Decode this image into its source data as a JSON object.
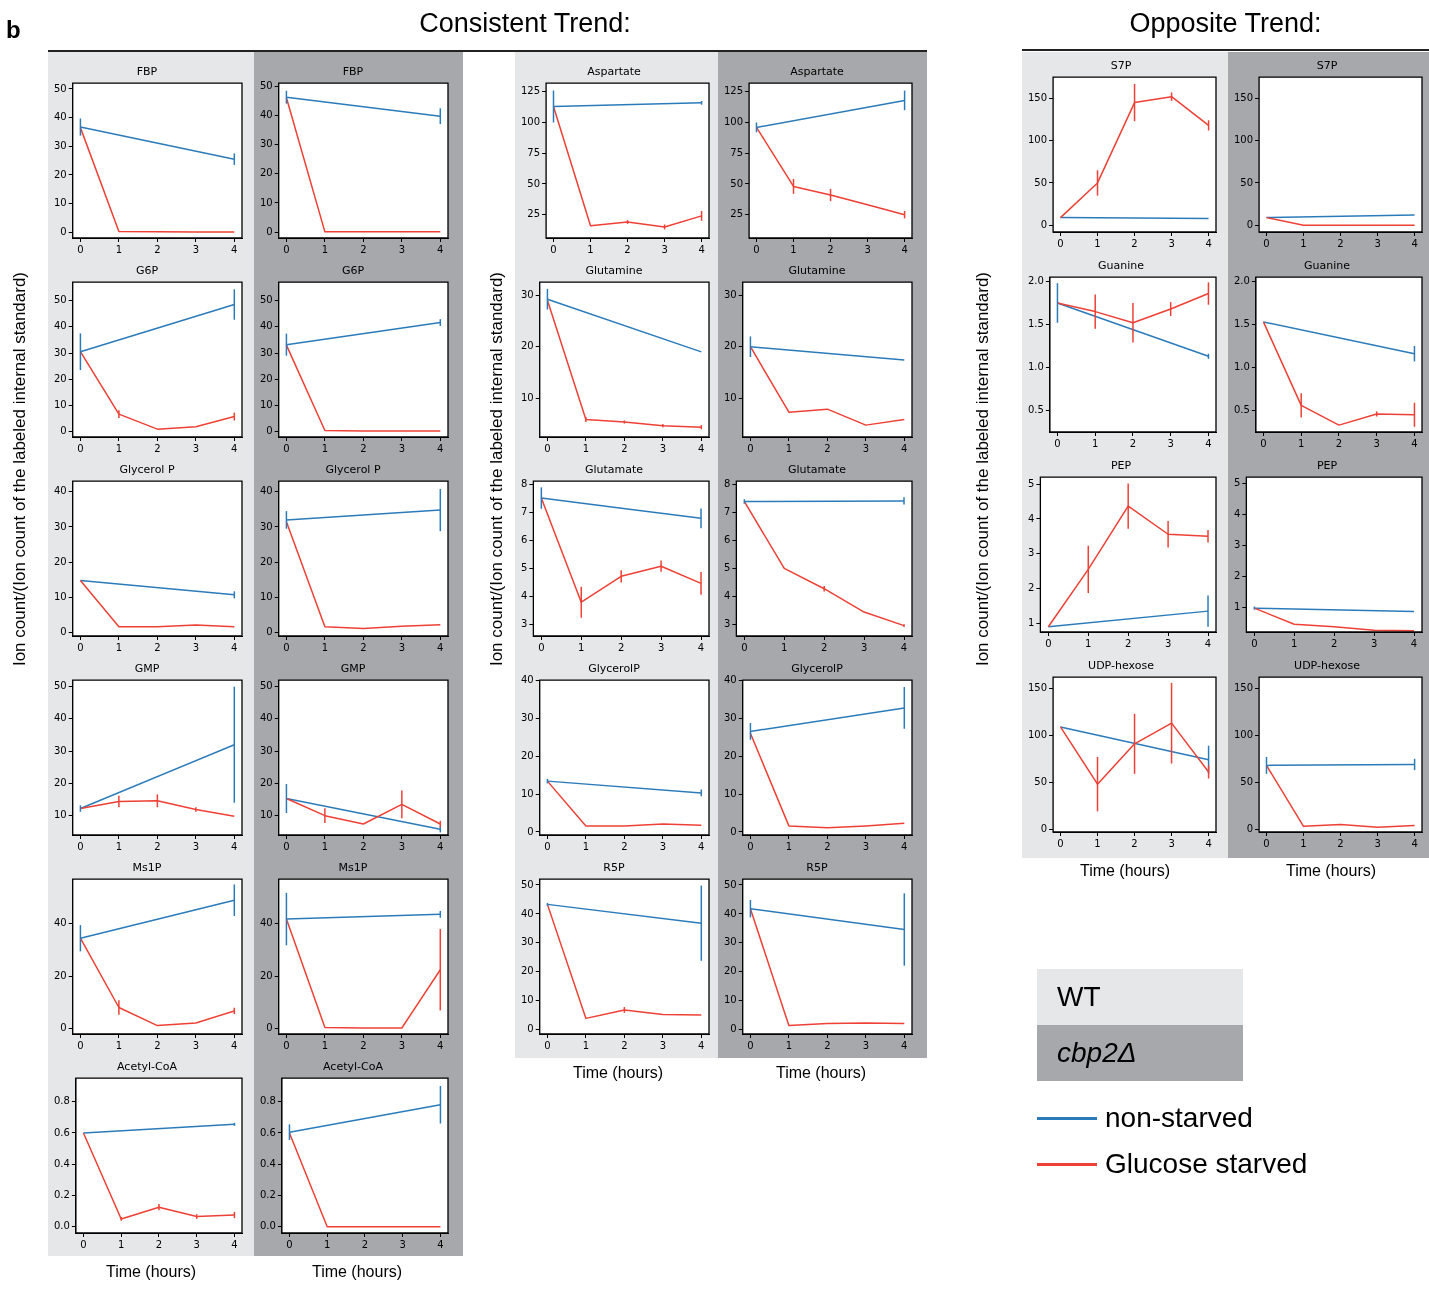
{
  "chart_data": [
    {
      "type": "line",
      "title": "FBP",
      "ylabel": "Ion count/(Ion count of the labeled internal standard)",
      "legend": "bottom right",
      "x": [
        0,
        1,
        2,
        3,
        4
      ],
      "xlim": [
        -0.2,
        4.2
      ],
      "xticks": [
        0,
        1,
        2,
        3,
        4
      ],
      "ylim": [
        -2,
        52
      ],
      "yticks": [
        0,
        10,
        20,
        30,
        40,
        50
      ],
      "series": [
        {
          "name": "non-starved",
          "color": "#2b7bba",
          "values": [
            36.7,
            null,
            null,
            null,
            25.5
          ],
          "errors": [
            3,
            null,
            null,
            null,
            2
          ]
        },
        {
          "name": "Glucose starved",
          "color": "#ee4035",
          "values": [
            36.5,
            0.3,
            0.2,
            0.1,
            0.1
          ]
        }
      ]
    },
    {
      "type": "line",
      "title": "FBP",
      "x": [
        0,
        1,
        2,
        3,
        4
      ],
      "xlim": [
        -0.2,
        4.2
      ],
      "xticks": [
        0,
        1,
        2,
        3,
        4
      ],
      "ylim": [
        -2,
        51
      ],
      "yticks": [
        0,
        10,
        20,
        30,
        40,
        50
      ],
      "series": [
        {
          "color": "#2b7bba",
          "values": [
            46.2,
            null,
            null,
            null,
            39.7
          ],
          "errors": [
            2.2,
            null,
            null,
            null,
            2.7
          ]
        },
        {
          "color": "#ee4035",
          "values": [
            46,
            0.1,
            0.1,
            0.1,
            0.1
          ]
        }
      ]
    },
    {
      "type": "line",
      "title": "G6P",
      "x": [
        0,
        1,
        2,
        3,
        4
      ],
      "xlim": [
        -0.2,
        4.2
      ],
      "xticks": [
        0,
        1,
        2,
        3,
        4
      ],
      "ylim": [
        -2,
        57
      ],
      "yticks": [
        0,
        10,
        20,
        30,
        40,
        50
      ],
      "series": [
        {
          "color": "#2b7bba",
          "values": [
            30.5,
            null,
            null,
            null,
            48.5
          ],
          "errors": [
            7,
            null,
            null,
            null,
            5.8
          ]
        },
        {
          "color": "#ee4035",
          "values": [
            30.5,
            6.7,
            1,
            1.9,
            5.8
          ],
          "errors": [
            null,
            1.5,
            null,
            null,
            1.5
          ]
        }
      ]
    },
    {
      "type": "line",
      "title": "G6P",
      "x": [
        0,
        1,
        2,
        3,
        4
      ],
      "xlim": [
        -0.2,
        4.2
      ],
      "xticks": [
        0,
        1,
        2,
        3,
        4
      ],
      "ylim": [
        -2,
        57
      ],
      "yticks": [
        0,
        10,
        20,
        30,
        40,
        50
      ],
      "series": [
        {
          "color": "#2b7bba",
          "values": [
            33.2,
            null,
            null,
            null,
            41.6
          ],
          "errors": [
            4.2,
            null,
            null,
            null,
            1.3
          ]
        },
        {
          "color": "#ee4035",
          "values": [
            33,
            0.5,
            0.3,
            0.3,
            0.3
          ]
        }
      ]
    },
    {
      "type": "line",
      "title": "Glycerol P",
      "x": [
        0,
        1,
        2,
        3,
        4
      ],
      "xlim": [
        -0.2,
        4.2
      ],
      "xticks": [
        0,
        1,
        2,
        3,
        4
      ],
      "ylim": [
        -1,
        43
      ],
      "yticks": [
        0,
        10,
        20,
        30,
        40
      ],
      "series": [
        {
          "color": "#2b7bba",
          "values": [
            14.8,
            null,
            null,
            null,
            10.7
          ],
          "errors": [
            null,
            null,
            null,
            null,
            1
          ]
        },
        {
          "color": "#ee4035",
          "values": [
            14.8,
            1.6,
            1.6,
            2.1,
            1.6
          ]
        }
      ]
    },
    {
      "type": "line",
      "title": "Glycerol P",
      "x": [
        0,
        1,
        2,
        3,
        4
      ],
      "xlim": [
        -0.2,
        4.2
      ],
      "xticks": [
        0,
        1,
        2,
        3,
        4
      ],
      "ylim": [
        -1,
        43
      ],
      "yticks": [
        0,
        10,
        20,
        30,
        40
      ],
      "series": [
        {
          "color": "#2b7bba",
          "values": [
            32,
            null,
            null,
            null,
            34.8
          ],
          "errors": [
            2.5,
            null,
            null,
            null,
            6
          ]
        },
        {
          "color": "#ee4035",
          "values": [
            31.5,
            1.6,
            1.1,
            1.8,
            2.2
          ]
        }
      ]
    },
    {
      "type": "line",
      "title": "GMP",
      "x": [
        0,
        1,
        2,
        3,
        4
      ],
      "xlim": [
        -0.2,
        4.2
      ],
      "xticks": [
        0,
        1,
        2,
        3,
        4
      ],
      "ylim": [
        4,
        52
      ],
      "yticks": [
        10,
        20,
        30,
        40,
        50
      ],
      "series": [
        {
          "color": "#2b7bba",
          "values": [
            12.2,
            null,
            null,
            null,
            32
          ],
          "errors": [
            1,
            null,
            null,
            null,
            18
          ]
        },
        {
          "color": "#ee4035",
          "values": [
            12.2,
            14.4,
            14.6,
            11.9,
            9.8
          ],
          "errors": [
            null,
            1.8,
            2,
            0.7,
            null
          ]
        }
      ]
    },
    {
      "type": "line",
      "title": "GMP",
      "x": [
        0,
        1,
        2,
        3,
        4
      ],
      "xlim": [
        -0.2,
        4.2
      ],
      "xticks": [
        0,
        1,
        2,
        3,
        4
      ],
      "ylim": [
        4,
        52
      ],
      "yticks": [
        10,
        20,
        30,
        40,
        50
      ],
      "series": [
        {
          "color": "#2b7bba",
          "values": [
            15.3,
            null,
            null,
            null,
            5.8
          ],
          "errors": [
            4.5,
            null,
            null,
            null,
            1
          ]
        },
        {
          "color": "#ee4035",
          "values": [
            15.3,
            10,
            7.4,
            13.5,
            7.4
          ],
          "errors": [
            null,
            2.3,
            null,
            4.3,
            1
          ]
        }
      ]
    },
    {
      "type": "line",
      "title": "Ms1P",
      "x": [
        0,
        1,
        2,
        3,
        4
      ],
      "xlim": [
        -0.2,
        4.2
      ],
      "xticks": [
        0,
        1,
        2,
        3,
        4
      ],
      "ylim": [
        -2,
        57
      ],
      "yticks": [
        0,
        20,
        40
      ],
      "series": [
        {
          "color": "#2b7bba",
          "values": [
            34.5,
            null,
            null,
            null,
            49
          ],
          "errors": [
            5,
            null,
            null,
            null,
            6
          ]
        },
        {
          "color": "#ee4035",
          "values": [
            34.5,
            8.1,
            1.2,
            2.2,
            6.8
          ],
          "errors": [
            null,
            2.8,
            null,
            null,
            1.2
          ]
        }
      ]
    },
    {
      "type": "line",
      "title": "Ms1P",
      "x": [
        0,
        1,
        2,
        3,
        4
      ],
      "xlim": [
        -0.2,
        4.2
      ],
      "xticks": [
        0,
        1,
        2,
        3,
        4
      ],
      "ylim": [
        -2,
        57
      ],
      "yticks": [
        0,
        20,
        40
      ],
      "series": [
        {
          "color": "#2b7bba",
          "values": [
            41.8,
            null,
            null,
            null,
            43.6
          ],
          "errors": [
            10,
            null,
            null,
            null,
            1.3
          ]
        },
        {
          "color": "#ee4035",
          "values": [
            41.8,
            0.5,
            0.3,
            0.3,
            22.5
          ],
          "errors": [
            null,
            null,
            null,
            null,
            15.5
          ]
        }
      ]
    },
    {
      "type": "line",
      "title": "Acetyl-CoA",
      "xlabel": "Time (hours)",
      "x": [
        0,
        1,
        2,
        3,
        4
      ],
      "xlim": [
        -0.2,
        4.2
      ],
      "xticks": [
        0,
        1,
        2,
        3,
        4
      ],
      "ylim": [
        -0.04,
        0.95
      ],
      "yticks": [
        {
          "value": 0,
          "label": "0.0"
        },
        0.2,
        0.4,
        0.6,
        0.8
      ],
      "series": [
        {
          "color": "#2b7bba",
          "values": [
            0.6,
            null,
            null,
            null,
            0.655
          ],
          "errors": [
            null,
            null,
            null,
            null,
            0.01
          ]
        },
        {
          "color": "#ee4035",
          "values": [
            0.6,
            0.05,
            0.125,
            0.065,
            0.075
          ],
          "errors": [
            null,
            0.012,
            0.02,
            0.015,
            0.02
          ]
        }
      ]
    },
    {
      "type": "line",
      "title": "Acetyl-CoA",
      "xlabel": "Time (hours)",
      "x": [
        0,
        1,
        2,
        3,
        4
      ],
      "xlim": [
        -0.2,
        4.2
      ],
      "xticks": [
        0,
        1,
        2,
        3,
        4
      ],
      "ylim": [
        -0.04,
        0.95
      ],
      "yticks": [
        {
          "value": 0,
          "label": "0.0"
        },
        0.2,
        0.4,
        0.6,
        0.8
      ],
      "series": [
        {
          "color": "#2b7bba",
          "values": [
            0.605,
            null,
            null,
            null,
            0.78
          ],
          "errors": [
            0.05,
            null,
            null,
            null,
            0.12
          ]
        },
        {
          "color": "#ee4035",
          "values": [
            0.6,
            0,
            0,
            0,
            0
          ]
        }
      ]
    },
    {
      "type": "line",
      "title": "Aspartate",
      "ylabel": "Ion count/(Ion count of the labeled internal standard)",
      "x": [
        0,
        1,
        2,
        3,
        4
      ],
      "xlim": [
        -0.2,
        4.2
      ],
      "xticks": [
        0,
        1,
        2,
        3,
        4
      ],
      "ylim": [
        6,
        132
      ],
      "yticks": [
        25,
        50,
        75,
        100,
        125
      ],
      "series": [
        {
          "color": "#2b7bba",
          "values": [
            113,
            null,
            null,
            null,
            116
          ],
          "errors": [
            13,
            null,
            null,
            null,
            1.5
          ]
        },
        {
          "color": "#ee4035",
          "values": [
            113,
            16,
            19,
            15,
            24
          ],
          "errors": [
            null,
            null,
            1.5,
            2,
            4
          ]
        }
      ]
    },
    {
      "type": "line",
      "title": "Aspartate",
      "x": [
        0,
        1,
        2,
        3,
        4
      ],
      "xlim": [
        -0.2,
        4.2
      ],
      "xticks": [
        0,
        1,
        2,
        3,
        4
      ],
      "ylim": [
        6,
        132
      ],
      "yticks": [
        25,
        50,
        75,
        100,
        125
      ],
      "series": [
        {
          "color": "#2b7bba",
          "values": [
            96,
            null,
            null,
            null,
            118
          ],
          "errors": [
            4,
            null,
            null,
            null,
            8
          ]
        },
        {
          "color": "#ee4035",
          "values": [
            96,
            48,
            41,
            33,
            25
          ],
          "errors": [
            null,
            6,
            5,
            null,
            3
          ]
        }
      ]
    },
    {
      "type": "line",
      "title": "Glutamine",
      "x": [
        0,
        1,
        2,
        3,
        4
      ],
      "xlim": [
        -0.2,
        4.2
      ],
      "xticks": [
        0,
        1,
        2,
        3,
        4
      ],
      "ylim": [
        2.5,
        32.5
      ],
      "yticks": [
        10,
        20,
        30
      ],
      "series": [
        {
          "color": "#2b7bba",
          "values": [
            29.2,
            null,
            null,
            null,
            19
          ],
          "errors": [
            2,
            null,
            null,
            null,
            null
          ]
        },
        {
          "color": "#ee4035",
          "values": [
            29,
            5.9,
            5.4,
            4.7,
            4.4
          ],
          "errors": [
            null,
            0.5,
            0.3,
            0.3,
            0.4
          ]
        }
      ]
    },
    {
      "type": "line",
      "title": "Glutamine",
      "x": [
        0,
        1,
        2,
        3,
        4
      ],
      "xlim": [
        -0.2,
        4.2
      ],
      "xticks": [
        0,
        1,
        2,
        3,
        4
      ],
      "ylim": [
        2.5,
        32.5
      ],
      "yticks": [
        10,
        20,
        30
      ],
      "series": [
        {
          "color": "#2b7bba",
          "values": [
            20,
            null,
            null,
            null,
            17.4
          ],
          "errors": [
            2,
            null,
            null,
            null,
            null
          ]
        },
        {
          "color": "#ee4035",
          "values": [
            20,
            7.3,
            7.9,
            4.8,
            5.9
          ]
        }
      ]
    },
    {
      "type": "line",
      "title": "Glutamate",
      "x": [
        0,
        1,
        2,
        3,
        4
      ],
      "xlim": [
        -0.2,
        4.2
      ],
      "xticks": [
        0,
        1,
        2,
        3,
        4
      ],
      "ylim": [
        2.6,
        8.1
      ],
      "yticks": [
        3,
        4,
        5,
        6,
        7,
        8
      ],
      "series": [
        {
          "color": "#2b7bba",
          "values": [
            7.5,
            null,
            null,
            null,
            6.78
          ],
          "errors": [
            0.38,
            null,
            null,
            null,
            0.35
          ]
        },
        {
          "color": "#ee4035",
          "values": [
            7.5,
            3.8,
            4.72,
            5.08,
            4.47
          ],
          "errors": [
            null,
            0.55,
            0.22,
            0.2,
            0.4
          ]
        }
      ]
    },
    {
      "type": "line",
      "title": "Glutamate",
      "x": [
        0,
        1,
        2,
        3,
        4
      ],
      "xlim": [
        -0.2,
        4.2
      ],
      "xticks": [
        0,
        1,
        2,
        3,
        4
      ],
      "ylim": [
        2.6,
        8.1
      ],
      "yticks": [
        3,
        4,
        5,
        6,
        7,
        8
      ],
      "series": [
        {
          "color": "#2b7bba",
          "values": [
            7.38,
            null,
            null,
            null,
            7.4
          ],
          "errors": [
            0.08,
            null,
            null,
            null,
            0.13
          ]
        },
        {
          "color": "#ee4035",
          "values": [
            7.38,
            5,
            4.28,
            3.45,
            2.97
          ],
          "errors": [
            null,
            null,
            0.1,
            null,
            0.05
          ]
        }
      ]
    },
    {
      "type": "line",
      "title": "GlycerolP",
      "x": [
        0,
        1,
        2,
        3,
        4
      ],
      "xlim": [
        -0.2,
        4.2
      ],
      "xticks": [
        0,
        1,
        2,
        3,
        4
      ],
      "ylim": [
        -0.8,
        40
      ],
      "yticks": [
        0,
        10,
        20,
        30,
        40
      ],
      "series": [
        {
          "color": "#2b7bba",
          "values": [
            13.4,
            null,
            null,
            null,
            10.3
          ],
          "errors": [
            0.6,
            null,
            null,
            null,
            0.9
          ]
        },
        {
          "color": "#ee4035",
          "values": [
            13.4,
            1.6,
            1.6,
            2.1,
            1.8
          ]
        }
      ]
    },
    {
      "type": "line",
      "title": "GlycerolP",
      "x": [
        0,
        1,
        2,
        3,
        4
      ],
      "xlim": [
        -0.2,
        4.2
      ],
      "xticks": [
        0,
        1,
        2,
        3,
        4
      ],
      "ylim": [
        -0.8,
        40
      ],
      "yticks": [
        0,
        10,
        20,
        30,
        40
      ],
      "series": [
        {
          "color": "#2b7bba",
          "values": [
            26.5,
            null,
            null,
            null,
            32.7
          ],
          "errors": [
            2.2,
            null,
            null,
            null,
            5.5
          ]
        },
        {
          "color": "#ee4035",
          "values": [
            26,
            1.6,
            1.1,
            1.6,
            2.3
          ]
        }
      ]
    },
    {
      "type": "line",
      "title": "R5P",
      "xlabel": "Time (hours)",
      "x": [
        0,
        1,
        2,
        3,
        4
      ],
      "xlim": [
        -0.2,
        4.2
      ],
      "xticks": [
        0,
        1,
        2,
        3,
        4
      ],
      "ylim": [
        -1.5,
        52
      ],
      "yticks": [
        0,
        10,
        20,
        30,
        40,
        50
      ],
      "series": [
        {
          "color": "#2b7bba",
          "values": [
            43.3,
            null,
            null,
            null,
            36.8
          ],
          "errors": [
            0.5,
            null,
            null,
            null,
            13
          ]
        },
        {
          "color": "#ee4035",
          "values": [
            43.3,
            3.9,
            6.8,
            5.2,
            5.1
          ],
          "errors": [
            null,
            null,
            1,
            null,
            null
          ]
        }
      ]
    },
    {
      "type": "line",
      "title": "R5P",
      "xlabel": "Time (hours)",
      "x": [
        0,
        1,
        2,
        3,
        4
      ],
      "xlim": [
        -0.2,
        4.2
      ],
      "xticks": [
        0,
        1,
        2,
        3,
        4
      ],
      "ylim": [
        -1.5,
        52
      ],
      "yticks": [
        0,
        10,
        20,
        30,
        40,
        50
      ],
      "series": [
        {
          "color": "#2b7bba",
          "values": [
            41.8,
            null,
            null,
            null,
            34.6
          ],
          "errors": [
            3,
            null,
            null,
            null,
            12.5
          ]
        },
        {
          "color": "#ee4035",
          "values": [
            41.8,
            1.4,
            2.1,
            2.3,
            2.1
          ]
        }
      ]
    },
    {
      "type": "line",
      "title": "S7P",
      "ylabel": "Ion count/(Ion count of the labeled internal standard)",
      "x": [
        0,
        1,
        2,
        3,
        4
      ],
      "xlim": [
        -0.2,
        4.2
      ],
      "xticks": [
        0,
        1,
        2,
        3,
        4
      ],
      "ylim": [
        -8,
        175
      ],
      "yticks": [
        0,
        50,
        100,
        150
      ],
      "series": [
        {
          "color": "#2b7bba",
          "values": [
            9,
            null,
            null,
            null,
            8
          ]
        },
        {
          "color": "#ee4035",
          "values": [
            9,
            50,
            145,
            152,
            118
          ],
          "errors": [
            null,
            15,
            22,
            5,
            6
          ]
        }
      ]
    },
    {
      "type": "line",
      "title": "S7P",
      "x": [
        0,
        1,
        2,
        3,
        4
      ],
      "xlim": [
        -0.2,
        4.2
      ],
      "xticks": [
        0,
        1,
        2,
        3,
        4
      ],
      "ylim": [
        -8,
        175
      ],
      "yticks": [
        0,
        50,
        100,
        150
      ],
      "series": [
        {
          "color": "#2b7bba",
          "values": [
            9,
            null,
            null,
            null,
            12
          ]
        },
        {
          "color": "#ee4035",
          "values": [
            9,
            0,
            0,
            0,
            0
          ]
        }
      ]
    },
    {
      "type": "line",
      "title": "Guanine",
      "x": [
        0,
        1,
        2,
        3,
        4
      ],
      "xlim": [
        -0.2,
        4.2
      ],
      "xticks": [
        0,
        1,
        2,
        3,
        4
      ],
      "ylim": [
        0.25,
        2.05
      ],
      "yticks": [
        0.5,
        {
          "value": 1,
          "label": "1.0"
        },
        1.5,
        {
          "value": 2,
          "label": "2.0"
        }
      ],
      "series": [
        {
          "color": "#2b7bba",
          "values": [
            1.75,
            null,
            null,
            null,
            1.13
          ],
          "errors": [
            0.23,
            null,
            null,
            null,
            0.03
          ]
        },
        {
          "color": "#ee4035",
          "values": [
            1.75,
            1.65,
            1.52,
            1.68,
            1.86
          ],
          "errors": [
            null,
            0.2,
            0.23,
            0.08,
            0.13
          ]
        }
      ]
    },
    {
      "type": "line",
      "title": "Guanine",
      "x": [
        0,
        1,
        2,
        3,
        4
      ],
      "xlim": [
        -0.2,
        4.2
      ],
      "xticks": [
        0,
        1,
        2,
        3,
        4
      ],
      "ylim": [
        0.25,
        2.05
      ],
      "yticks": [
        0.5,
        {
          "value": 1,
          "label": "1.0"
        },
        1.5,
        {
          "value": 2,
          "label": "2.0"
        }
      ],
      "series": [
        {
          "color": "#2b7bba",
          "values": [
            1.53,
            null,
            null,
            null,
            1.16
          ],
          "errors": [
            null,
            null,
            null,
            null,
            0.09
          ]
        },
        {
          "color": "#ee4035",
          "values": [
            1.53,
            0.56,
            0.33,
            0.46,
            0.45
          ],
          "errors": [
            null,
            0.14,
            null,
            0.03,
            0.14
          ]
        }
      ]
    },
    {
      "type": "line",
      "title": "PEP",
      "x": [
        0,
        1,
        2,
        3,
        4
      ],
      "xlim": [
        -0.2,
        4.2
      ],
      "xticks": [
        0,
        1,
        2,
        3,
        4
      ],
      "ylim": [
        0.75,
        5.2
      ],
      "yticks": [
        1,
        2,
        3,
        4,
        5
      ],
      "series": [
        {
          "color": "#2b7bba",
          "values": [
            0.9,
            null,
            null,
            null,
            1.35
          ],
          "errors": [
            null,
            null,
            null,
            null,
            0.45
          ]
        },
        {
          "color": "#ee4035",
          "values": [
            0.9,
            2.55,
            4.37,
            3.56,
            3.5
          ],
          "errors": [
            null,
            0.68,
            0.65,
            0.38,
            0.18
          ]
        }
      ]
    },
    {
      "type": "line",
      "title": "PEP",
      "x": [
        0,
        1,
        2,
        3,
        4
      ],
      "xlim": [
        -0.2,
        4.2
      ],
      "xticks": [
        0,
        1,
        2,
        3,
        4
      ],
      "ylim": [
        0.2,
        5.2
      ],
      "yticks": [
        1,
        2,
        3,
        4,
        5
      ],
      "series": [
        {
          "color": "#2b7bba",
          "values": [
            0.97,
            null,
            null,
            null,
            0.86
          ],
          "errors": [
            0.05,
            null,
            null,
            null,
            null
          ]
        },
        {
          "color": "#ee4035",
          "values": [
            0.97,
            0.45,
            0.37,
            0.26,
            0.24
          ]
        }
      ]
    },
    {
      "type": "line",
      "title": "UDP-hexose",
      "xlabel": "Time (hours)",
      "x": [
        0,
        1,
        2,
        3,
        4
      ],
      "xlim": [
        -0.2,
        4.2
      ],
      "xticks": [
        0,
        1,
        2,
        3,
        4
      ],
      "ylim": [
        -3,
        162
      ],
      "yticks": [
        0,
        50,
        100,
        150
      ],
      "series": [
        {
          "color": "#2b7bba",
          "values": [
            109,
            null,
            null,
            null,
            74
          ],
          "errors": [
            null,
            null,
            null,
            null,
            15
          ]
        },
        {
          "color": "#ee4035",
          "values": [
            109,
            48,
            91,
            113,
            61
          ],
          "errors": [
            null,
            29,
            32,
            43,
            7
          ]
        }
      ]
    },
    {
      "type": "line",
      "title": "UDP-hexose",
      "xlabel": "Time (hours)",
      "x": [
        0,
        1,
        2,
        3,
        4
      ],
      "xlim": [
        -0.2,
        4.2
      ],
      "xticks": [
        0,
        1,
        2,
        3,
        4
      ],
      "ylim": [
        -3,
        162
      ],
      "yticks": [
        0,
        50,
        100,
        150
      ],
      "series": [
        {
          "color": "#2b7bba",
          "values": [
            68,
            null,
            null,
            null,
            69
          ],
          "errors": [
            9,
            null,
            null,
            null,
            6
          ]
        },
        {
          "color": "#ee4035",
          "values": [
            68,
            3,
            5,
            2,
            4
          ]
        }
      ]
    },
    {
      "type": "other",
      "annotations": [
        "b",
        "Consistent Trend:",
        "Opposite Trend:",
        "WT",
        "cbp2Δ"
      ]
    }
  ]
}
